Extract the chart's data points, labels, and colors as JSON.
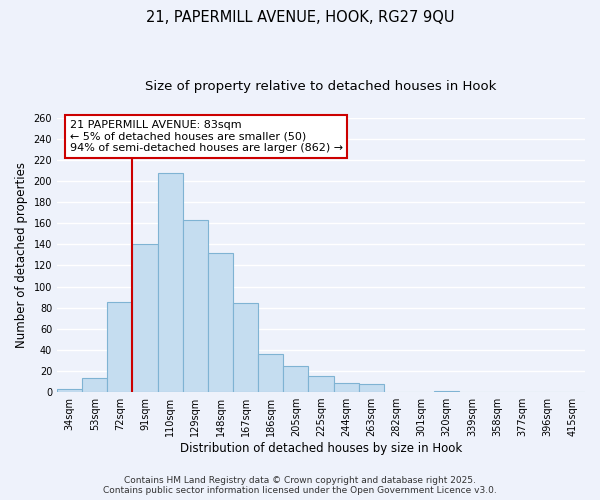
{
  "title_line1": "21, PAPERMILL AVENUE, HOOK, RG27 9QU",
  "title_line2": "Size of property relative to detached houses in Hook",
  "xlabel": "Distribution of detached houses by size in Hook",
  "ylabel": "Number of detached properties",
  "categories": [
    "34sqm",
    "53sqm",
    "72sqm",
    "91sqm",
    "110sqm",
    "129sqm",
    "148sqm",
    "167sqm",
    "186sqm",
    "205sqm",
    "225sqm",
    "244sqm",
    "263sqm",
    "282sqm",
    "301sqm",
    "320sqm",
    "339sqm",
    "358sqm",
    "377sqm",
    "396sqm",
    "415sqm"
  ],
  "values": [
    3,
    13,
    85,
    140,
    208,
    163,
    132,
    84,
    36,
    25,
    15,
    9,
    8,
    0,
    0,
    1,
    0,
    0,
    0,
    0,
    0
  ],
  "bar_color": "#c5ddf0",
  "bar_edge_color": "#7fb3d3",
  "vline_color": "#cc0000",
  "vline_x_idx": 2.5,
  "annotation_title": "21 PAPERMILL AVENUE: 83sqm",
  "annotation_line2": "← 5% of detached houses are smaller (50)",
  "annotation_line3": "94% of semi-detached houses are larger (862) →",
  "annotation_box_color": "#ffffff",
  "annotation_box_edge": "#cc0000",
  "ylim": [
    0,
    260
  ],
  "yticks": [
    0,
    20,
    40,
    60,
    80,
    100,
    120,
    140,
    160,
    180,
    200,
    220,
    240,
    260
  ],
  "bg_color": "#eef2fb",
  "grid_color": "#ffffff",
  "footer_line1": "Contains HM Land Registry data © Crown copyright and database right 2025.",
  "footer_line2": "Contains public sector information licensed under the Open Government Licence v3.0.",
  "title_fontsize": 10.5,
  "subtitle_fontsize": 9.5,
  "axis_label_fontsize": 8.5,
  "tick_fontsize": 7,
  "annot_fontsize": 8,
  "footer_fontsize": 6.5
}
